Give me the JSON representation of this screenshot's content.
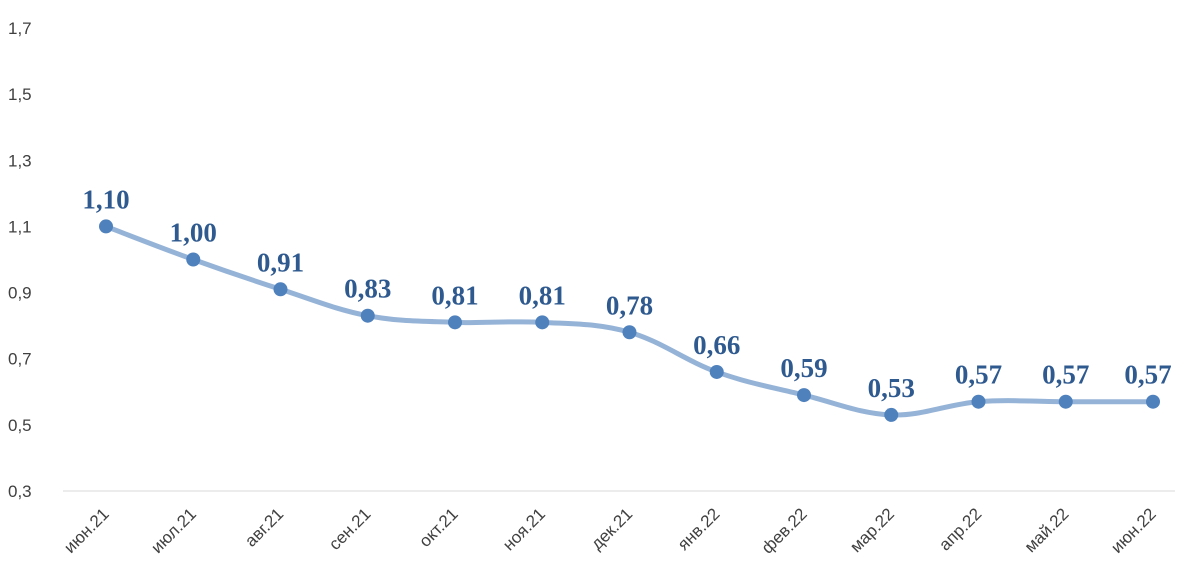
{
  "chart_data": {
    "type": "line",
    "title": "",
    "xlabel": "",
    "ylabel": "",
    "categories": [
      "июн.21",
      "июл.21",
      "авг.21",
      "сен.21",
      "окт.21",
      "ноя.21",
      "дек.21",
      "янв.22",
      "фев.22",
      "мар.22",
      "апр.22",
      "май.22",
      "июн.22"
    ],
    "series": [
      {
        "values": [
          1.1,
          1.0,
          0.91,
          0.83,
          0.81,
          0.81,
          0.78,
          0.66,
          0.59,
          0.53,
          0.57,
          0.57,
          0.57
        ],
        "data_labels": [
          "1,10",
          "1,00",
          "0,91",
          "0,83",
          "0,81",
          "0,81",
          "0,78",
          "0,66",
          "0,59",
          "0,53",
          "0,57",
          "0,57",
          "0,57"
        ]
      }
    ],
    "ylim": [
      0.3,
      1.7
    ],
    "yticks": [
      0.3,
      0.5,
      0.7,
      0.9,
      1.1,
      1.3,
      1.5,
      1.7
    ],
    "ytick_labels": [
      "0,3",
      "0,5",
      "0,7",
      "0,9",
      "1,1",
      "1,3",
      "1,5",
      "1,7"
    ],
    "grid": false,
    "legend": "none",
    "colors": {
      "line": "#95B3D7",
      "marker": "#4F81BD",
      "label": "#2F5A8F",
      "axis": "#D9D9D9",
      "tick_text": "#404040"
    }
  }
}
